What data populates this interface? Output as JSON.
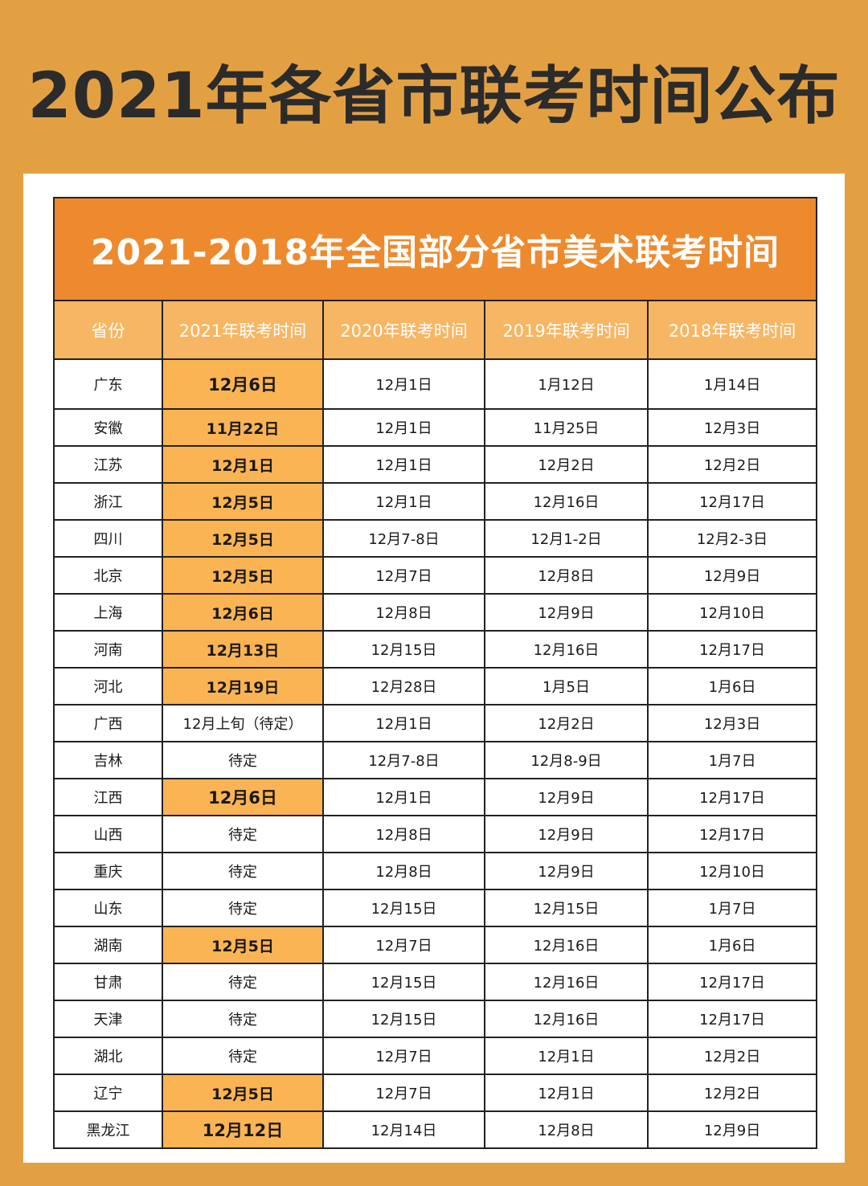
{
  "page_title": "2021年各省市联考时间公布",
  "table_title": "2021-2018年全国部分省市美术联考时间",
  "headers": [
    "省份",
    "2021年联考时间",
    "2020年联考时间",
    "2019年联考时间",
    "2018年联考时间"
  ],
  "colors": {
    "background": "#E3A043",
    "banner": "#ED8A2E",
    "header": "#F7B663",
    "highlight": "#FBB454"
  },
  "rows": [
    {
      "province": "广东",
      "y2021": "12月6日",
      "y2020": "12月1日",
      "y2019": "1月12日",
      "y2018": "1月14日",
      "highlight": true
    },
    {
      "province": "安徽",
      "y2021": "11月22日",
      "y2020": "12月1日",
      "y2019": "11月25日",
      "y2018": "12月3日",
      "highlight": true
    },
    {
      "province": "江苏",
      "y2021": "12月1日",
      "y2020": "12月1日",
      "y2019": "12月2日",
      "y2018": "12月2日",
      "highlight": true
    },
    {
      "province": "浙江",
      "y2021": "12月5日",
      "y2020": "12月1日",
      "y2019": "12月16日",
      "y2018": "12月17日",
      "highlight": true
    },
    {
      "province": "四川",
      "y2021": "12月5日",
      "y2020": "12月7-8日",
      "y2019": "12月1-2日",
      "y2018": "12月2-3日",
      "highlight": true
    },
    {
      "province": "北京",
      "y2021": "12月5日",
      "y2020": "12月7日",
      "y2019": "12月8日",
      "y2018": "12月9日",
      "highlight": true
    },
    {
      "province": "上海",
      "y2021": "12月6日",
      "y2020": "12月8日",
      "y2019": "12月9日",
      "y2018": "12月10日",
      "highlight": true
    },
    {
      "province": "河南",
      "y2021": "12月13日",
      "y2020": "12月15日",
      "y2019": "12月16日",
      "y2018": "12月17日",
      "highlight": true
    },
    {
      "province": "河北",
      "y2021": "12月19日",
      "y2020": "12月28日",
      "y2019": "1月5日",
      "y2018": "1月6日",
      "highlight": true
    },
    {
      "province": "广西",
      "y2021": "12月上旬（待定）",
      "y2020": "12月1日",
      "y2019": "12月2日",
      "y2018": "12月3日",
      "highlight": false
    },
    {
      "province": "吉林",
      "y2021": "待定",
      "y2020": "12月7-8日",
      "y2019": "12月8-9日",
      "y2018": "1月7日",
      "highlight": false
    },
    {
      "province": "江西",
      "y2021": "12月6日",
      "y2020": "12月1日",
      "y2019": "12月9日",
      "y2018": "12月17日",
      "highlight": true
    },
    {
      "province": "山西",
      "y2021": "待定",
      "y2020": "12月8日",
      "y2019": "12月9日",
      "y2018": "12月17日",
      "highlight": false
    },
    {
      "province": "重庆",
      "y2021": "待定",
      "y2020": "12月8日",
      "y2019": "12月9日",
      "y2018": "12月10日",
      "highlight": false
    },
    {
      "province": "山东",
      "y2021": "待定",
      "y2020": "12月15日",
      "y2019": "12月15日",
      "y2018": "1月7日",
      "highlight": false
    },
    {
      "province": "湖南",
      "y2021": "12月5日",
      "y2020": "12月7日",
      "y2019": "12月16日",
      "y2018": "1月6日",
      "highlight": true
    },
    {
      "province": "甘肃",
      "y2021": "待定",
      "y2020": "12月15日",
      "y2019": "12月16日",
      "y2018": "12月17日",
      "highlight": false
    },
    {
      "province": "天津",
      "y2021": "待定",
      "y2020": "12月15日",
      "y2019": "12月16日",
      "y2018": "12月17日",
      "highlight": false
    },
    {
      "province": "湖北",
      "y2021": "待定",
      "y2020": "12月7日",
      "y2019": "12月1日",
      "y2018": "12月2日",
      "highlight": false
    },
    {
      "province": "辽宁",
      "y2021": "12月5日",
      "y2020": "12月7日",
      "y2019": "12月1日",
      "y2018": "12月2日",
      "highlight": true
    },
    {
      "province": "黑龙江",
      "y2021": "12月12日",
      "y2020": "12月14日",
      "y2019": "12月8日",
      "y2018": "12月9日",
      "highlight": true
    }
  ]
}
